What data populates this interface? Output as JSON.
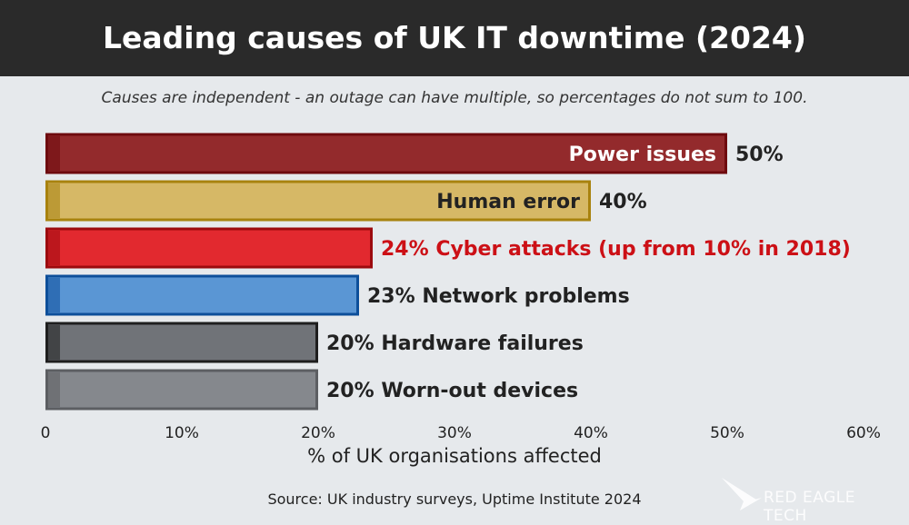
{
  "title": "Leading causes of UK IT downtime (2024)",
  "subtitle": "Causes are independent - an outage can have multiple, so percentages do not sum to 100.",
  "source": "Source: UK industry surveys, Uptime Institute 2024",
  "logo": "RED EAGLE TECH",
  "chart_data": {
    "type": "bar",
    "orientation": "horizontal",
    "title": "Leading causes of UK IT downtime (2024)",
    "xlabel": "% of UK organisations affected",
    "ylabel": "",
    "xlim": [
      0,
      60
    ],
    "ticks": [
      "0",
      "10%",
      "20%",
      "30%",
      "40%",
      "50%",
      "60%"
    ],
    "grid": false,
    "bars": [
      {
        "label": "Power issues",
        "value": 50,
        "value_label": "50%",
        "text": "Power issues",
        "label_inside": true,
        "fill": "#932a2c",
        "border": "#6e0a0e",
        "text_color": "#ffffff"
      },
      {
        "label": "Human error",
        "value": 40,
        "value_label": "40%",
        "text": "Human error",
        "label_inside": true,
        "fill": "#d6b866",
        "border": "#a8820e",
        "text_color": "#222222"
      },
      {
        "label": "Cyber attacks",
        "value": 24,
        "value_label": "24%",
        "text": "24% Cyber attacks (up from 10% in 2018)",
        "label_inside": false,
        "fill": "#e2292f",
        "border": "#9c0a0e",
        "text_color": "#cc1016"
      },
      {
        "label": "Network problems",
        "value": 23,
        "value_label": "23%",
        "text": "23%  Network problems",
        "label_inside": false,
        "fill": "#5a96d4",
        "border": "#0d4f9a",
        "text_color": "#222222"
      },
      {
        "label": "Hardware failures",
        "value": 20,
        "value_label": "20%",
        "text": "20%  Hardware failures",
        "label_inside": false,
        "fill": "#707378",
        "border": "#1e1e1e",
        "text_color": "#222222"
      },
      {
        "label": "Worn-out devices",
        "value": 20,
        "value_label": "20%",
        "text": "20%  Worn-out devices",
        "label_inside": false,
        "fill": "#85888d",
        "border": "#5c5e62",
        "text_color": "#222222"
      }
    ]
  }
}
